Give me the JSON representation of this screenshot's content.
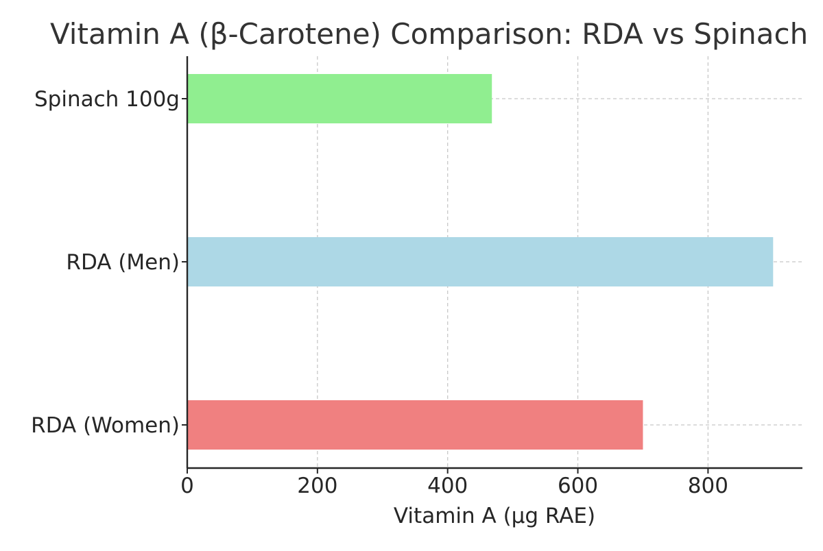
{
  "chart_data": {
    "type": "bar",
    "orientation": "horizontal",
    "title": "Vitamin A (β-Carotene) Comparison: RDA vs Spinach",
    "xlabel": "Vitamin A (µg RAE)",
    "ylabel": "",
    "categories": [
      "RDA (Women)",
      "RDA (Men)",
      "Spinach 100g"
    ],
    "values": [
      700,
      900,
      468
    ],
    "colors": [
      "#f08080",
      "#add8e6",
      "#90ee90"
    ],
    "xlim": [
      0,
      945
    ],
    "xticks": [
      0,
      200,
      400,
      600,
      800
    ],
    "grid": true,
    "legend": "none"
  }
}
